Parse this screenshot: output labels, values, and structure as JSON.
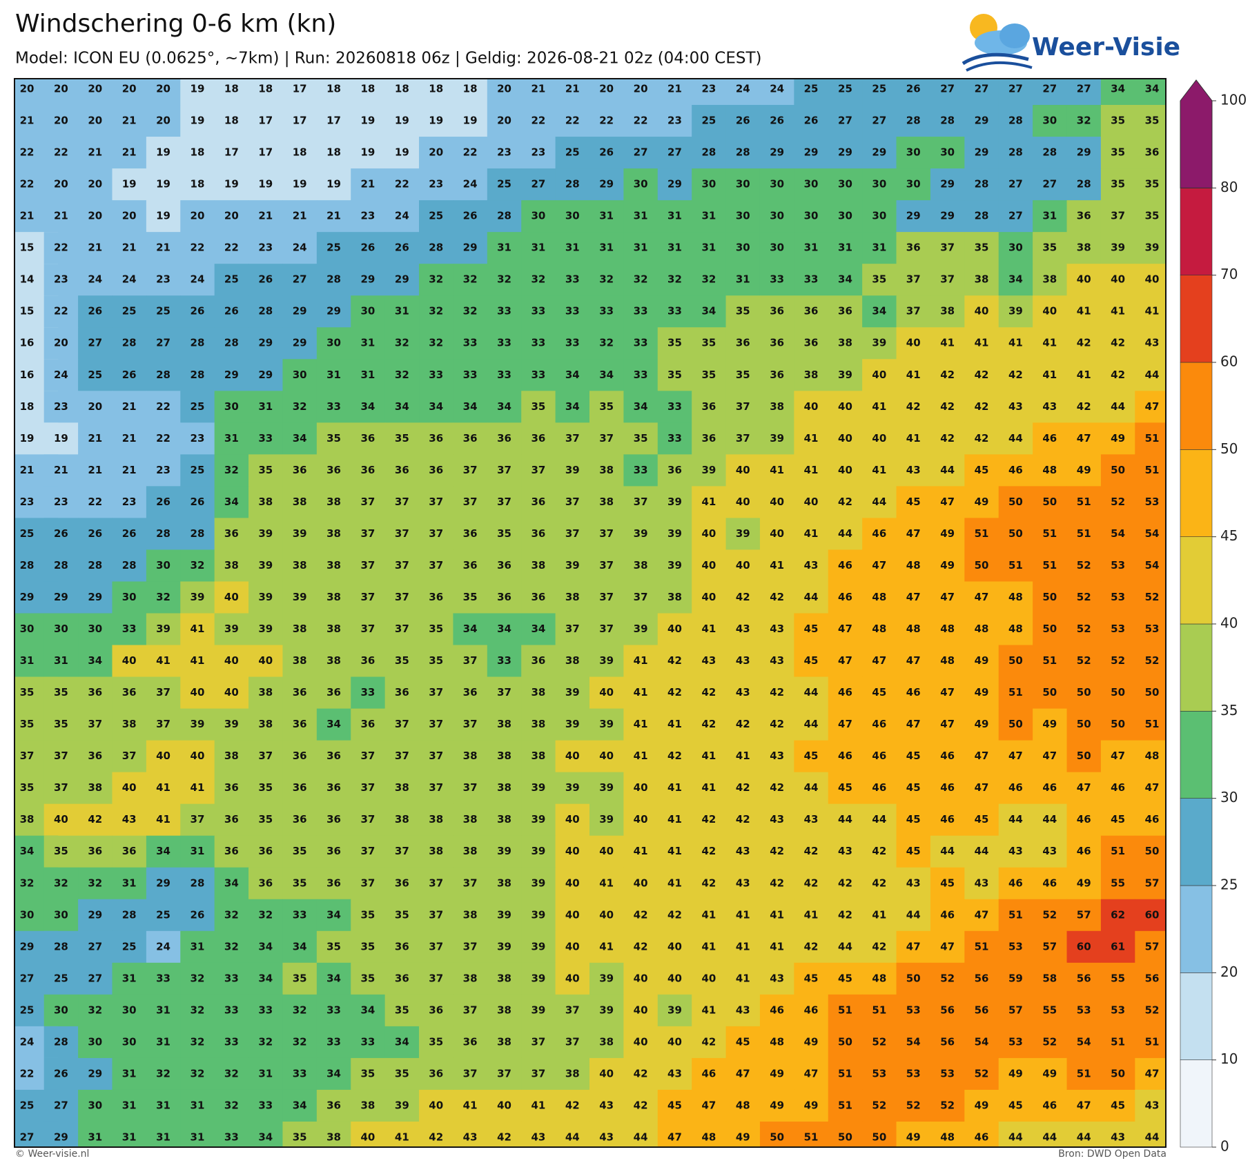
{
  "header": {
    "title": "Windschering 0-6 km (kn)",
    "subtitle": "Model: ICON EU (0.0625°, ~7km)  |  Run: 20260818 06z  |  Geldig: 2026-08-21 02z (04:00 CEST)"
  },
  "logo": {
    "text": "Weer-Visie"
  },
  "grid": {
    "rows": [
      [
        20,
        20,
        20,
        20,
        20,
        19,
        18,
        18,
        17,
        18,
        18,
        18,
        18,
        18,
        20,
        21,
        21,
        20,
        20,
        21,
        23,
        24,
        24,
        25,
        25,
        25,
        26,
        27,
        27,
        27,
        27,
        27,
        34,
        34
      ],
      [
        21,
        20,
        20,
        21,
        20,
        19,
        18,
        17,
        17,
        17,
        19,
        19,
        19,
        19,
        20,
        22,
        22,
        22,
        22,
        23,
        25,
        26,
        26,
        26,
        27,
        27,
        28,
        28,
        29,
        28,
        30,
        32,
        35,
        35
      ],
      [
        22,
        22,
        21,
        21,
        19,
        18,
        17,
        17,
        18,
        18,
        19,
        19,
        20,
        22,
        23,
        23,
        25,
        26,
        27,
        27,
        28,
        28,
        29,
        29,
        29,
        29,
        30,
        30,
        29,
        28,
        28,
        29,
        35,
        36
      ],
      [
        22,
        20,
        20,
        19,
        19,
        18,
        19,
        19,
        19,
        19,
        21,
        22,
        23,
        24,
        25,
        27,
        28,
        29,
        30,
        29,
        30,
        30,
        30,
        30,
        30,
        30,
        30,
        29,
        28,
        27,
        27,
        28,
        35,
        35
      ],
      [
        21,
        21,
        20,
        20,
        19,
        20,
        20,
        21,
        21,
        21,
        23,
        24,
        25,
        26,
        28,
        30,
        30,
        31,
        31,
        31,
        31,
        30,
        30,
        30,
        30,
        30,
        29,
        29,
        28,
        27,
        31,
        36,
        37,
        35
      ],
      [
        15,
        22,
        21,
        21,
        21,
        22,
        22,
        23,
        24,
        25,
        26,
        26,
        28,
        29,
        31,
        31,
        31,
        31,
        31,
        31,
        31,
        30,
        30,
        31,
        31,
        31,
        36,
        37,
        35,
        30,
        35,
        38,
        39,
        39
      ],
      [
        14,
        23,
        24,
        24,
        23,
        24,
        25,
        26,
        27,
        28,
        29,
        29,
        32,
        32,
        32,
        32,
        33,
        32,
        32,
        32,
        32,
        31,
        33,
        33,
        34,
        35,
        37,
        37,
        38,
        34,
        38,
        40,
        40,
        40
      ],
      [
        15,
        22,
        26,
        25,
        25,
        26,
        26,
        28,
        29,
        29,
        30,
        31,
        32,
        32,
        33,
        33,
        33,
        33,
        33,
        33,
        34,
        35,
        36,
        36,
        36,
        34,
        37,
        38,
        40,
        39,
        40,
        41,
        41,
        41
      ],
      [
        16,
        20,
        27,
        28,
        27,
        28,
        28,
        29,
        29,
        30,
        31,
        32,
        32,
        33,
        33,
        33,
        33,
        32,
        33,
        35,
        35,
        36,
        36,
        36,
        38,
        39,
        40,
        41,
        41,
        41,
        41,
        42,
        42,
        43
      ],
      [
        16,
        24,
        25,
        26,
        28,
        28,
        29,
        29,
        30,
        31,
        31,
        32,
        33,
        33,
        33,
        33,
        34,
        34,
        33,
        35,
        35,
        35,
        36,
        38,
        39,
        40,
        41,
        42,
        42,
        42,
        41,
        41,
        42,
        44
      ],
      [
        18,
        23,
        20,
        21,
        22,
        25,
        30,
        31,
        32,
        33,
        34,
        34,
        34,
        34,
        34,
        35,
        34,
        35,
        34,
        33,
        36,
        37,
        38,
        40,
        40,
        41,
        42,
        42,
        42,
        43,
        43,
        42,
        44,
        47
      ],
      [
        19,
        19,
        21,
        21,
        22,
        23,
        31,
        33,
        34,
        35,
        36,
        35,
        36,
        36,
        36,
        36,
        37,
        37,
        35,
        33,
        36,
        37,
        39,
        41,
        40,
        40,
        41,
        42,
        42,
        44,
        46,
        47,
        49,
        51
      ],
      [
        21,
        21,
        21,
        21,
        23,
        25,
        32,
        35,
        36,
        36,
        36,
        36,
        36,
        37,
        37,
        37,
        39,
        38,
        33,
        36,
        39,
        40,
        41,
        41,
        40,
        41,
        43,
        44,
        45,
        46,
        48,
        49,
        50,
        51
      ],
      [
        23,
        23,
        22,
        23,
        26,
        26,
        34,
        38,
        38,
        38,
        37,
        37,
        37,
        37,
        37,
        36,
        37,
        38,
        37,
        39,
        41,
        40,
        40,
        40,
        42,
        44,
        45,
        47,
        49,
        50,
        50,
        51,
        52,
        53
      ],
      [
        25,
        26,
        26,
        26,
        28,
        28,
        36,
        39,
        39,
        38,
        37,
        37,
        37,
        36,
        35,
        36,
        37,
        37,
        39,
        39,
        40,
        39,
        40,
        41,
        44,
        46,
        47,
        49,
        51,
        50,
        51,
        51,
        54,
        54
      ],
      [
        28,
        28,
        28,
        28,
        30,
        32,
        38,
        39,
        38,
        38,
        37,
        37,
        37,
        36,
        36,
        38,
        39,
        37,
        38,
        39,
        40,
        40,
        41,
        43,
        46,
        47,
        48,
        49,
        50,
        51,
        51,
        52,
        53,
        54
      ],
      [
        29,
        29,
        29,
        30,
        32,
        39,
        40,
        39,
        39,
        38,
        37,
        37,
        36,
        35,
        36,
        36,
        38,
        37,
        37,
        38,
        40,
        42,
        42,
        44,
        46,
        48,
        47,
        47,
        47,
        48,
        50,
        52,
        53,
        52
      ],
      [
        30,
        30,
        30,
        33,
        39,
        41,
        39,
        39,
        38,
        38,
        37,
        37,
        35,
        34,
        34,
        34,
        37,
        37,
        39,
        40,
        41,
        43,
        43,
        45,
        47,
        48,
        48,
        48,
        48,
        48,
        50,
        52,
        53,
        53
      ],
      [
        31,
        31,
        34,
        40,
        41,
        41,
        40,
        40,
        38,
        38,
        36,
        35,
        35,
        37,
        33,
        36,
        38,
        39,
        41,
        42,
        43,
        43,
        43,
        45,
        47,
        47,
        47,
        48,
        49,
        50,
        51,
        52,
        52,
        52
      ],
      [
        35,
        35,
        36,
        36,
        37,
        40,
        40,
        38,
        36,
        36,
        33,
        36,
        37,
        36,
        37,
        38,
        39,
        40,
        41,
        42,
        42,
        43,
        42,
        44,
        46,
        45,
        46,
        47,
        49,
        51,
        50,
        50,
        50,
        50
      ],
      [
        35,
        35,
        37,
        38,
        37,
        39,
        39,
        38,
        36,
        34,
        36,
        37,
        37,
        37,
        38,
        38,
        39,
        39,
        41,
        41,
        42,
        42,
        42,
        44,
        47,
        46,
        47,
        47,
        49,
        50,
        49,
        50,
        50,
        51
      ],
      [
        37,
        37,
        36,
        37,
        40,
        40,
        38,
        37,
        36,
        36,
        37,
        37,
        37,
        38,
        38,
        38,
        40,
        40,
        41,
        42,
        41,
        41,
        43,
        45,
        46,
        46,
        45,
        46,
        47,
        47,
        47,
        50,
        47,
        48
      ],
      [
        35,
        37,
        38,
        40,
        41,
        41,
        36,
        35,
        36,
        36,
        37,
        38,
        37,
        37,
        38,
        39,
        39,
        39,
        40,
        41,
        41,
        42,
        42,
        44,
        45,
        46,
        45,
        46,
        47,
        46,
        46,
        47,
        46,
        47
      ],
      [
        38,
        40,
        42,
        43,
        41,
        37,
        36,
        35,
        36,
        36,
        37,
        38,
        38,
        38,
        38,
        39,
        40,
        39,
        40,
        41,
        42,
        42,
        43,
        43,
        44,
        44,
        45,
        46,
        45,
        44,
        44,
        46,
        45,
        46
      ],
      [
        34,
        35,
        36,
        36,
        34,
        31,
        36,
        36,
        35,
        36,
        37,
        37,
        38,
        38,
        39,
        39,
        40,
        40,
        41,
        41,
        42,
        43,
        42,
        42,
        43,
        42,
        45,
        44,
        44,
        43,
        43,
        46,
        51,
        50
      ],
      [
        32,
        32,
        32,
        31,
        29,
        28,
        34,
        36,
        35,
        36,
        37,
        36,
        37,
        37,
        38,
        39,
        40,
        41,
        40,
        41,
        42,
        43,
        42,
        42,
        42,
        42,
        43,
        45,
        43,
        46,
        46,
        49,
        55,
        57
      ],
      [
        30,
        30,
        29,
        28,
        25,
        26,
        32,
        32,
        33,
        34,
        35,
        35,
        37,
        38,
        39,
        39,
        40,
        40,
        42,
        42,
        41,
        41,
        41,
        41,
        42,
        41,
        44,
        46,
        47,
        51,
        52,
        57,
        62,
        60
      ],
      [
        29,
        28,
        27,
        25,
        24,
        31,
        32,
        34,
        34,
        35,
        35,
        36,
        37,
        37,
        39,
        39,
        40,
        41,
        42,
        40,
        41,
        41,
        41,
        42,
        44,
        42,
        47,
        47,
        51,
        53,
        57,
        60,
        61,
        57
      ],
      [
        27,
        25,
        27,
        31,
        33,
        32,
        33,
        34,
        35,
        34,
        35,
        36,
        37,
        38,
        38,
        39,
        40,
        39,
        40,
        40,
        40,
        41,
        43,
        45,
        45,
        48,
        50,
        52,
        56,
        59,
        58,
        56,
        55,
        56
      ],
      [
        25,
        30,
        32,
        30,
        31,
        32,
        33,
        33,
        32,
        33,
        34,
        35,
        36,
        37,
        38,
        39,
        37,
        39,
        40,
        39,
        41,
        43,
        46,
        46,
        51,
        51,
        53,
        56,
        56,
        57,
        55,
        53,
        53,
        52
      ],
      [
        24,
        28,
        30,
        30,
        31,
        32,
        33,
        32,
        32,
        33,
        33,
        34,
        35,
        36,
        38,
        37,
        37,
        38,
        40,
        40,
        42,
        45,
        48,
        49,
        50,
        52,
        54,
        56,
        54,
        53,
        52,
        54,
        51,
        51
      ],
      [
        22,
        26,
        29,
        31,
        32,
        32,
        32,
        31,
        33,
        34,
        35,
        35,
        36,
        37,
        37,
        37,
        38,
        40,
        42,
        43,
        46,
        47,
        49,
        47,
        51,
        53,
        53,
        53,
        52,
        49,
        49,
        51,
        50,
        47
      ],
      [
        25,
        27,
        30,
        31,
        31,
        31,
        32,
        33,
        34,
        36,
        38,
        39,
        40,
        41,
        40,
        41,
        42,
        43,
        42,
        45,
        47,
        48,
        49,
        49,
        51,
        52,
        52,
        52,
        49,
        45,
        46,
        47,
        45,
        43
      ],
      [
        27,
        29,
        31,
        31,
        31,
        31,
        33,
        34,
        35,
        38,
        40,
        41,
        42,
        43,
        42,
        43,
        44,
        43,
        44,
        47,
        48,
        49,
        50,
        51,
        50,
        50,
        49,
        48,
        46,
        44,
        44,
        44,
        43,
        44
      ]
    ]
  },
  "colorbar": {
    "ticks": [
      0,
      10,
      20,
      25,
      30,
      35,
      40,
      45,
      50,
      60,
      70,
      80,
      100
    ],
    "colors": [
      "#f0f5fa",
      "#c4e0f0",
      "#86c0e4",
      "#5aaacb",
      "#5bbf72",
      "#a9cc52",
      "#e2cc36",
      "#fbb416",
      "#fb8a0c",
      "#e4401e",
      "#c51b3f",
      "#8c1a6a"
    ]
  },
  "footer": {
    "left": "© Weer-visie.nl",
    "right": "Bron: DWD Open Data"
  }
}
